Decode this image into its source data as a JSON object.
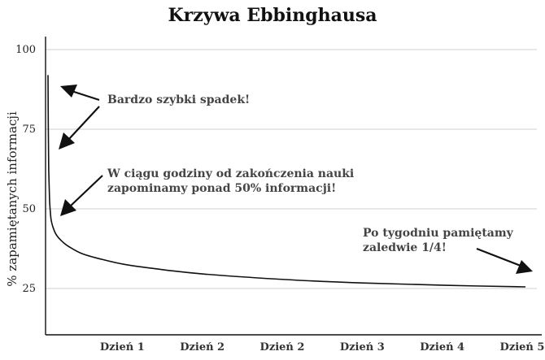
{
  "chart_data": {
    "type": "line",
    "title": "Krzywa Ebbinghausa",
    "ylabel": "% zapamiętanych informacji",
    "xlabel": "",
    "ylim": [
      15,
      104
    ],
    "xlim": [
      0,
      6
    ],
    "grid": true,
    "y_ticks": [
      {
        "value": 100,
        "label": "100"
      },
      {
        "value": 75,
        "label": "75"
      },
      {
        "value": 50,
        "label": "50"
      },
      {
        "value": 25,
        "label": "25"
      }
    ],
    "x_ticks": [
      {
        "value": 1,
        "label": "Dzień 1"
      },
      {
        "value": 2,
        "label": "Dzień 2"
      },
      {
        "value": 3,
        "label": "Dzień 2"
      },
      {
        "value": 4,
        "label": "Dzień 3"
      },
      {
        "value": 5,
        "label": "Dzień 4"
      },
      {
        "value": 6,
        "label": "Dzień 5"
      }
    ],
    "series": [
      {
        "x": [
          0.03,
          0.035,
          0.04,
          0.05,
          0.06,
          0.07,
          0.09,
          0.12,
          0.16,
          0.22,
          0.3,
          0.45,
          0.65,
          1.0,
          1.5,
          2.0,
          3.0,
          4.0,
          5.0,
          6.0
        ],
        "y": [
          92,
          75,
          62,
          53,
          49,
          46.5,
          44.5,
          42.5,
          41,
          39.5,
          38,
          36,
          34.5,
          32.5,
          30.8,
          29.5,
          27.8,
          26.7,
          26,
          25.5
        ]
      }
    ],
    "annotations": [
      {
        "text": "Bardzo szybki spadek!",
        "lines": [
          "Bardzo szybki spadek!"
        ]
      },
      {
        "text": "W ciągu godziny od zakończenia nauki zapominamy ponad 50% informacji!",
        "lines": [
          "W ciągu godziny od zakończenia nauki",
          "zapominamy ponad 50% informacji!"
        ]
      },
      {
        "text": "Po tygodniu pamiętamy zaledwie 1/4!",
        "lines": [
          "Po tygodniu pamiętamy",
          "zaledwie 1/4!"
        ]
      }
    ]
  }
}
